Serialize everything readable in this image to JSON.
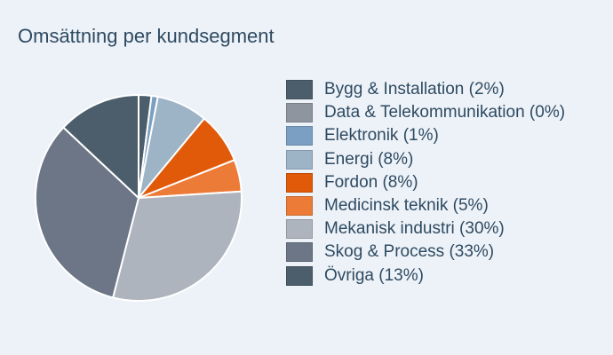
{
  "chart_data": {
    "type": "pie",
    "title": "Omsättning per kundsegment",
    "start_angle_deg": 0,
    "direction": "clockwise",
    "legend_position": "right",
    "slices": [
      {
        "label": "Bygg & Installation (2%)",
        "name": "Bygg & Installation",
        "value": 2,
        "color": "#4c5e6c"
      },
      {
        "label": "Data & Telekommunikation (0%)",
        "name": "Data & Telekommunikation",
        "value": 0,
        "color": "#8f959f"
      },
      {
        "label": "Elektronik (1%)",
        "name": "Elektronik",
        "value": 1,
        "color": "#7a9fc2"
      },
      {
        "label": "Energi (8%)",
        "name": "Energi",
        "value": 8,
        "color": "#9db3c6"
      },
      {
        "label": "Fordon (8%)",
        "name": "Fordon",
        "value": 8,
        "color": "#e05a0a"
      },
      {
        "label": "Medicinsk teknik (5%)",
        "name": "Medicinsk teknik",
        "value": 5,
        "color": "#ec7b37"
      },
      {
        "label": "Mekanisk industri (30%)",
        "name": "Mekanisk industri",
        "value": 30,
        "color": "#aeb4be"
      },
      {
        "label": "Skog & Process (33%)",
        "name": "Skog & Process",
        "value": 33,
        "color": "#6c7686"
      },
      {
        "label": "Övriga (13%)",
        "name": "Övriga",
        "value": 13,
        "color": "#4c5e6c"
      }
    ]
  }
}
